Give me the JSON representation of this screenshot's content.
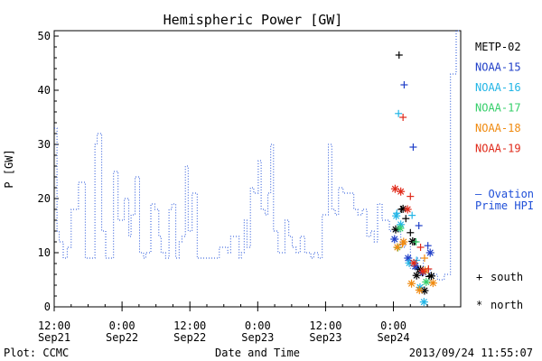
{
  "footer": {
    "plot_credit": "Plot: CCMC",
    "timestamp": "2013/09/24 11:55:07"
  },
  "chart_data": {
    "type": "line",
    "title": "Hemispheric Power [GW]",
    "ylabel": "P [GW]",
    "xlabel": "Date and Time",
    "ylim": [
      0,
      51
    ],
    "yticks": [
      0,
      10,
      20,
      30,
      40,
      50
    ],
    "xlim": [
      0,
      71.9
    ],
    "x_unit": "hours since 2013-09-21 12:00",
    "xticks": [
      {
        "x": 0,
        "time": "12:00",
        "date": "Sep21"
      },
      {
        "x": 12,
        "time": "0:00",
        "date": "Sep22"
      },
      {
        "x": 24,
        "time": "12:00",
        "date": "Sep22"
      },
      {
        "x": 36,
        "time": "0:00",
        "date": "Sep23"
      },
      {
        "x": 48,
        "time": "12:00",
        "date": "Sep23"
      },
      {
        "x": 60,
        "time": "0:00",
        "date": "Sep24"
      }
    ],
    "grid": false,
    "ovation": {
      "name": "Ovation Prime HPI",
      "label_line1": "— Ovation",
      "label_line2": "Prime HPI",
      "color": "#1f4fd8",
      "x": [
        0,
        0.5,
        0.9,
        1.6,
        2.3,
        3.0,
        4.3,
        5.5,
        6.5,
        7.2,
        7.6,
        8.4,
        9.1,
        10.5,
        11.3,
        12.4,
        13.2,
        13.6,
        14.3,
        15.1,
        15.8,
        16.2,
        17.1,
        17.8,
        18.5,
        18.9,
        19.7,
        20.3,
        20.8,
        21.5,
        22.1,
        22.6,
        23.2,
        23.7,
        24.4,
        25.3,
        25.9,
        26.5,
        27.1,
        27.8,
        28.4,
        29.2,
        30.7,
        31.2,
        32.7,
        33.1,
        33.6,
        34.1,
        34.7,
        35.3,
        36.1,
        36.6,
        37.3,
        37.8,
        38.3,
        38.8,
        39.6,
        40.1,
        40.8,
        41.5,
        42.1,
        42.8,
        43.5,
        44.3,
        45.4,
        45.9,
        46.7,
        47.4,
        48.5,
        49.1,
        49.7,
        50.3,
        51.1,
        52.4,
        53.0,
        53.7,
        54.5,
        55.3,
        56.0,
        56.6,
        57.2,
        58.0,
        59.3,
        60.5,
        61.3,
        62.1,
        63.0,
        64.1,
        65.3,
        66.5,
        67.8,
        69.0,
        70.1,
        71.1,
        71.9
      ],
      "y": [
        33,
        14,
        12,
        9,
        11,
        18,
        23,
        9,
        9,
        30,
        32,
        14,
        9,
        25,
        16,
        20,
        13,
        17,
        24,
        10,
        9,
        10,
        19,
        18,
        13,
        10,
        9,
        18,
        19,
        9,
        12,
        13,
        26,
        14,
        21,
        9,
        9,
        9,
        9,
        9,
        9,
        11,
        10,
        13,
        9,
        10,
        16,
        11,
        22,
        21,
        27,
        18,
        17,
        21,
        30,
        14,
        10,
        10,
        16,
        13,
        11,
        10,
        13,
        10,
        9,
        10,
        9,
        17,
        30,
        18,
        17,
        22,
        21,
        21,
        18,
        17,
        18,
        13,
        14,
        12,
        19,
        16,
        14,
        14,
        11,
        12,
        7,
        9,
        7,
        6,
        5,
        6,
        43,
        51,
        51
      ]
    },
    "satellite_series": [
      {
        "name": "METP-02",
        "color": "#000000",
        "south": [
          {
            "x": 61.0,
            "y": 46.5
          },
          {
            "x": 61.4,
            "y": 18.0
          },
          {
            "x": 62.2,
            "y": 16.3
          },
          {
            "x": 63.0,
            "y": 13.7
          },
          {
            "x": 63.7,
            "y": 12.0
          },
          {
            "x": 64.3,
            "y": 7.0
          },
          {
            "x": 65.1,
            "y": 6.3
          },
          {
            "x": 66.3,
            "y": 5.6
          }
        ],
        "north": [
          {
            "x": 60.4,
            "y": 14.3
          },
          {
            "x": 61.7,
            "y": 18.1
          },
          {
            "x": 63.4,
            "y": 12.1
          },
          {
            "x": 64.1,
            "y": 5.8
          },
          {
            "x": 64.8,
            "y": 6.9
          },
          {
            "x": 65.5,
            "y": 3.0
          },
          {
            "x": 66.7,
            "y": 5.7
          }
        ]
      },
      {
        "name": "NOAA-15",
        "color": "#1f3fc8",
        "south": [
          {
            "x": 61.9,
            "y": 41.0
          },
          {
            "x": 63.5,
            "y": 29.5
          },
          {
            "x": 64.5,
            "y": 15.0
          },
          {
            "x": 66.1,
            "y": 11.3
          }
        ],
        "north": [
          {
            "x": 60.2,
            "y": 12.5
          },
          {
            "x": 62.6,
            "y": 9.0
          },
          {
            "x": 63.9,
            "y": 7.5
          },
          {
            "x": 65.3,
            "y": 6.4
          },
          {
            "x": 66.5,
            "y": 10.0
          }
        ]
      },
      {
        "name": "NOAA-16",
        "color": "#22b5e6",
        "south": [
          {
            "x": 60.9,
            "y": 35.7
          },
          {
            "x": 60.6,
            "y": 17.3
          },
          {
            "x": 63.3,
            "y": 16.9
          },
          {
            "x": 64.1,
            "y": 8.6
          }
        ],
        "north": [
          {
            "x": 60.5,
            "y": 16.8
          },
          {
            "x": 61.3,
            "y": 15.2
          },
          {
            "x": 62.8,
            "y": 8.1
          },
          {
            "x": 64.7,
            "y": 3.6
          },
          {
            "x": 65.4,
            "y": 0.9
          }
        ]
      },
      {
        "name": "NOAA-17",
        "color": "#35cf6a",
        "south": [
          {
            "x": 60.8,
            "y": 10.9
          },
          {
            "x": 64.0,
            "y": 12.0
          }
        ],
        "north": [
          {
            "x": 61.2,
            "y": 14.5
          },
          {
            "x": 65.8,
            "y": 4.6
          }
        ]
      },
      {
        "name": "NOAA-18",
        "color": "#f08a10",
        "south": [
          {
            "x": 61.6,
            "y": 11.6
          },
          {
            "x": 65.5,
            "y": 9.0
          }
        ],
        "north": [
          {
            "x": 60.7,
            "y": 11.0
          },
          {
            "x": 61.8,
            "y": 12.0
          },
          {
            "x": 63.2,
            "y": 4.3
          },
          {
            "x": 64.6,
            "y": 3.1
          },
          {
            "x": 65.6,
            "y": 6.7
          },
          {
            "x": 67.0,
            "y": 4.4
          }
        ]
      },
      {
        "name": "NOAA-19",
        "color": "#e02a1a",
        "south": [
          {
            "x": 61.7,
            "y": 35.0
          },
          {
            "x": 63.0,
            "y": 20.4
          },
          {
            "x": 64.8,
            "y": 11.0
          },
          {
            "x": 66.2,
            "y": 7.0
          }
        ],
        "north": [
          {
            "x": 60.3,
            "y": 21.8
          },
          {
            "x": 61.3,
            "y": 21.3
          },
          {
            "x": 62.5,
            "y": 18.0
          },
          {
            "x": 63.6,
            "y": 8.1
          },
          {
            "x": 65.2,
            "y": 6.6
          }
        ]
      }
    ],
    "marker_legend": {
      "south_symbol": "+",
      "south_label": "south",
      "north_symbol": "*",
      "north_label": "north"
    }
  }
}
